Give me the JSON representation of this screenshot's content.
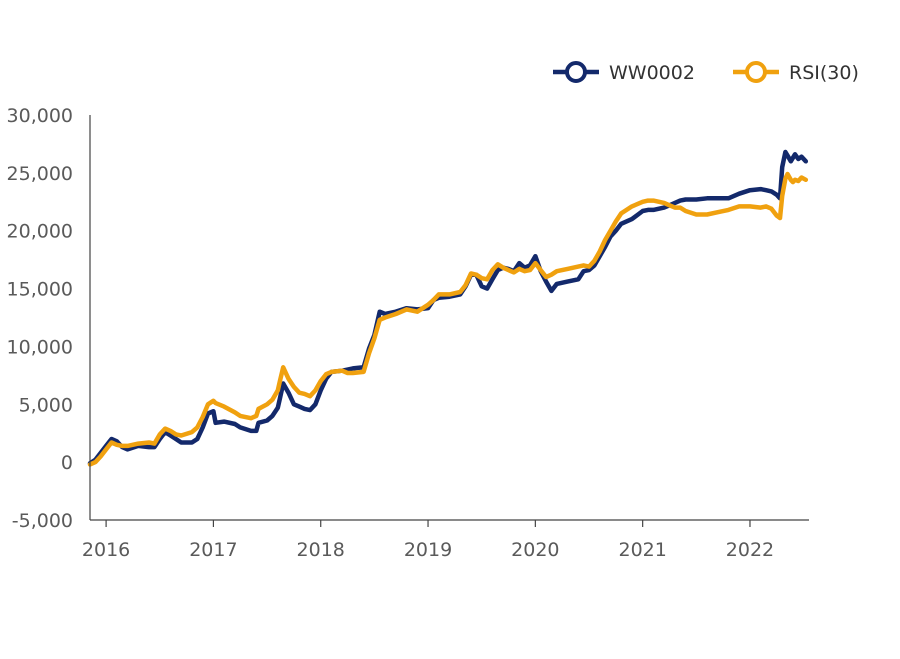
{
  "chart_data": {
    "type": "line",
    "title": "",
    "xlabel": "",
    "ylabel": "",
    "ylim": [
      -5000,
      30000
    ],
    "xlim": [
      2015.85,
      2022.55
    ],
    "y_ticks": [
      -5000,
      0,
      5000,
      10000,
      15000,
      20000,
      25000,
      30000
    ],
    "y_tick_labels": [
      "-5,000",
      "0",
      "5,000",
      "10,000",
      "15,000",
      "20,000",
      "25,000",
      "30,000"
    ],
    "x_ticks": [
      2016,
      2017,
      2018,
      2019,
      2020,
      2021,
      2022
    ],
    "x_tick_labels": [
      "2016",
      "2017",
      "2018",
      "2019",
      "2020",
      "2021",
      "2022"
    ],
    "legend_position": "top-right",
    "grid": false,
    "series": [
      {
        "name": "WW0002",
        "color": "#13296b",
        "points": [
          [
            2015.85,
            -100
          ],
          [
            2015.9,
            200
          ],
          [
            2015.95,
            800
          ],
          [
            2016.0,
            1400
          ],
          [
            2016.05,
            2000
          ],
          [
            2016.1,
            1800
          ],
          [
            2016.15,
            1300
          ],
          [
            2016.2,
            1100
          ],
          [
            2016.3,
            1400
          ],
          [
            2016.4,
            1300
          ],
          [
            2016.45,
            1300
          ],
          [
            2016.5,
            2000
          ],
          [
            2016.55,
            2600
          ],
          [
            2016.6,
            2300
          ],
          [
            2016.65,
            2000
          ],
          [
            2016.7,
            1700
          ],
          [
            2016.8,
            1700
          ],
          [
            2016.85,
            2000
          ],
          [
            2016.9,
            3000
          ],
          [
            2016.95,
            4200
          ],
          [
            2017.0,
            4400
          ],
          [
            2017.02,
            3400
          ],
          [
            2017.1,
            3500
          ],
          [
            2017.2,
            3300
          ],
          [
            2017.25,
            3000
          ],
          [
            2017.35,
            2700
          ],
          [
            2017.4,
            2700
          ],
          [
            2017.42,
            3400
          ],
          [
            2017.5,
            3600
          ],
          [
            2017.55,
            4000
          ],
          [
            2017.6,
            4700
          ],
          [
            2017.62,
            5500
          ],
          [
            2017.65,
            6800
          ],
          [
            2017.7,
            6000
          ],
          [
            2017.75,
            5000
          ],
          [
            2017.8,
            4800
          ],
          [
            2017.85,
            4600
          ],
          [
            2017.9,
            4500
          ],
          [
            2017.95,
            5000
          ],
          [
            2018.0,
            6200
          ],
          [
            2018.05,
            7200
          ],
          [
            2018.1,
            7800
          ],
          [
            2018.2,
            7900
          ],
          [
            2018.25,
            8000
          ],
          [
            2018.3,
            8100
          ],
          [
            2018.4,
            8200
          ],
          [
            2018.45,
            9800
          ],
          [
            2018.5,
            11000
          ],
          [
            2018.55,
            13000
          ],
          [
            2018.6,
            12800
          ],
          [
            2018.7,
            13000
          ],
          [
            2018.8,
            13300
          ],
          [
            2018.9,
            13200
          ],
          [
            2019.0,
            13300
          ],
          [
            2019.05,
            14000
          ],
          [
            2019.1,
            14200
          ],
          [
            2019.2,
            14300
          ],
          [
            2019.3,
            14500
          ],
          [
            2019.35,
            15200
          ],
          [
            2019.4,
            16200
          ],
          [
            2019.45,
            16200
          ],
          [
            2019.5,
            15200
          ],
          [
            2019.55,
            15000
          ],
          [
            2019.6,
            15800
          ],
          [
            2019.65,
            16600
          ],
          [
            2019.7,
            16800
          ],
          [
            2019.75,
            16700
          ],
          [
            2019.8,
            16500
          ],
          [
            2019.85,
            17200
          ],
          [
            2019.9,
            16800
          ],
          [
            2019.95,
            17000
          ],
          [
            2020.0,
            17800
          ],
          [
            2020.05,
            16500
          ],
          [
            2020.1,
            15600
          ],
          [
            2020.15,
            14800
          ],
          [
            2020.2,
            15400
          ],
          [
            2020.3,
            15600
          ],
          [
            2020.4,
            15800
          ],
          [
            2020.45,
            16500
          ],
          [
            2020.5,
            16600
          ],
          [
            2020.55,
            17000
          ],
          [
            2020.6,
            17800
          ],
          [
            2020.65,
            18600
          ],
          [
            2020.7,
            19500
          ],
          [
            2020.75,
            20000
          ],
          [
            2020.8,
            20600
          ],
          [
            2020.9,
            21000
          ],
          [
            2021.0,
            21700
          ],
          [
            2021.05,
            21800
          ],
          [
            2021.1,
            21800
          ],
          [
            2021.2,
            22000
          ],
          [
            2021.25,
            22200
          ],
          [
            2021.3,
            22400
          ],
          [
            2021.35,
            22600
          ],
          [
            2021.4,
            22700
          ],
          [
            2021.5,
            22700
          ],
          [
            2021.6,
            22800
          ],
          [
            2021.7,
            22800
          ],
          [
            2021.8,
            22800
          ],
          [
            2021.9,
            23200
          ],
          [
            2022.0,
            23500
          ],
          [
            2022.1,
            23600
          ],
          [
            2022.15,
            23500
          ],
          [
            2022.2,
            23400
          ],
          [
            2022.25,
            23100
          ],
          [
            2022.28,
            22800
          ],
          [
            2022.3,
            25500
          ],
          [
            2022.33,
            26800
          ],
          [
            2022.35,
            26500
          ],
          [
            2022.38,
            26000
          ],
          [
            2022.4,
            26300
          ],
          [
            2022.42,
            26600
          ],
          [
            2022.45,
            26200
          ],
          [
            2022.48,
            26400
          ],
          [
            2022.52,
            26000
          ]
        ]
      },
      {
        "name": "RSI(30)",
        "color": "#f0a10f",
        "points": [
          [
            2015.85,
            -200
          ],
          [
            2015.9,
            0
          ],
          [
            2015.95,
            500
          ],
          [
            2016.0,
            1100
          ],
          [
            2016.05,
            1700
          ],
          [
            2016.1,
            1500
          ],
          [
            2016.15,
            1400
          ],
          [
            2016.2,
            1400
          ],
          [
            2016.3,
            1600
          ],
          [
            2016.4,
            1700
          ],
          [
            2016.45,
            1600
          ],
          [
            2016.5,
            2400
          ],
          [
            2016.55,
            2900
          ],
          [
            2016.6,
            2700
          ],
          [
            2016.65,
            2400
          ],
          [
            2016.7,
            2300
          ],
          [
            2016.8,
            2600
          ],
          [
            2016.85,
            3000
          ],
          [
            2016.9,
            3900
          ],
          [
            2016.95,
            5000
          ],
          [
            2017.0,
            5300
          ],
          [
            2017.02,
            5100
          ],
          [
            2017.1,
            4800
          ],
          [
            2017.2,
            4300
          ],
          [
            2017.25,
            4000
          ],
          [
            2017.35,
            3800
          ],
          [
            2017.4,
            4000
          ],
          [
            2017.42,
            4600
          ],
          [
            2017.5,
            5000
          ],
          [
            2017.55,
            5400
          ],
          [
            2017.6,
            6200
          ],
          [
            2017.62,
            7000
          ],
          [
            2017.65,
            8200
          ],
          [
            2017.7,
            7200
          ],
          [
            2017.75,
            6500
          ],
          [
            2017.8,
            6000
          ],
          [
            2017.85,
            5900
          ],
          [
            2017.9,
            5700
          ],
          [
            2017.95,
            6200
          ],
          [
            2018.0,
            7000
          ],
          [
            2018.05,
            7600
          ],
          [
            2018.1,
            7800
          ],
          [
            2018.2,
            7900
          ],
          [
            2018.25,
            7700
          ],
          [
            2018.3,
            7700
          ],
          [
            2018.4,
            7800
          ],
          [
            2018.45,
            9400
          ],
          [
            2018.5,
            10700
          ],
          [
            2018.55,
            12300
          ],
          [
            2018.6,
            12500
          ],
          [
            2018.7,
            12800
          ],
          [
            2018.8,
            13200
          ],
          [
            2018.9,
            13000
          ],
          [
            2019.0,
            13600
          ],
          [
            2019.05,
            14000
          ],
          [
            2019.1,
            14500
          ],
          [
            2019.2,
            14500
          ],
          [
            2019.3,
            14700
          ],
          [
            2019.35,
            15300
          ],
          [
            2019.4,
            16300
          ],
          [
            2019.45,
            16200
          ],
          [
            2019.5,
            15900
          ],
          [
            2019.55,
            15800
          ],
          [
            2019.6,
            16600
          ],
          [
            2019.65,
            17100
          ],
          [
            2019.7,
            16800
          ],
          [
            2019.75,
            16600
          ],
          [
            2019.8,
            16400
          ],
          [
            2019.85,
            16700
          ],
          [
            2019.9,
            16500
          ],
          [
            2019.95,
            16600
          ],
          [
            2020.0,
            17200
          ],
          [
            2020.05,
            16600
          ],
          [
            2020.1,
            16000
          ],
          [
            2020.15,
            16200
          ],
          [
            2020.2,
            16500
          ],
          [
            2020.3,
            16700
          ],
          [
            2020.4,
            16900
          ],
          [
            2020.45,
            17000
          ],
          [
            2020.5,
            16900
          ],
          [
            2020.55,
            17400
          ],
          [
            2020.6,
            18200
          ],
          [
            2020.65,
            19200
          ],
          [
            2020.7,
            20000
          ],
          [
            2020.75,
            20800
          ],
          [
            2020.8,
            21500
          ],
          [
            2020.9,
            22100
          ],
          [
            2021.0,
            22500
          ],
          [
            2021.05,
            22600
          ],
          [
            2021.1,
            22600
          ],
          [
            2021.2,
            22400
          ],
          [
            2021.25,
            22200
          ],
          [
            2021.3,
            22000
          ],
          [
            2021.35,
            22000
          ],
          [
            2021.4,
            21700
          ],
          [
            2021.5,
            21400
          ],
          [
            2021.6,
            21400
          ],
          [
            2021.7,
            21600
          ],
          [
            2021.8,
            21800
          ],
          [
            2021.9,
            22100
          ],
          [
            2022.0,
            22100
          ],
          [
            2022.1,
            22000
          ],
          [
            2022.15,
            22100
          ],
          [
            2022.2,
            21900
          ],
          [
            2022.25,
            21300
          ],
          [
            2022.28,
            21100
          ],
          [
            2022.3,
            23000
          ],
          [
            2022.33,
            24500
          ],
          [
            2022.35,
            24900
          ],
          [
            2022.38,
            24400
          ],
          [
            2022.4,
            24200
          ],
          [
            2022.42,
            24400
          ],
          [
            2022.45,
            24300
          ],
          [
            2022.48,
            24600
          ],
          [
            2022.52,
            24400
          ]
        ]
      }
    ]
  }
}
